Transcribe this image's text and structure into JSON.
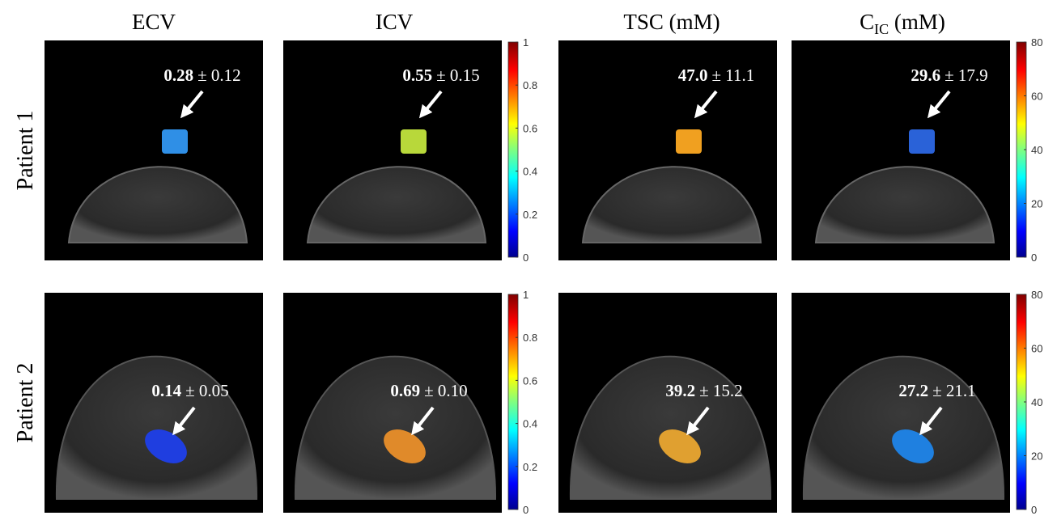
{
  "columns": [
    {
      "title": "ECV"
    },
    {
      "title": "ICV"
    },
    {
      "title": "TSC (mM)"
    },
    {
      "title": "C",
      "subscript": "IC",
      "suffix": " (mM)"
    }
  ],
  "rows": [
    {
      "label": "Patient 1",
      "panels": [
        {
          "mean": "0.28",
          "spread": "± 0.12"
        },
        {
          "mean": "0.55",
          "spread": "± 0.15"
        },
        {
          "mean": "47.0",
          "spread": "± 11.1"
        },
        {
          "mean": "29.6",
          "spread": "± 17.9"
        }
      ]
    },
    {
      "label": "Patient 2",
      "panels": [
        {
          "mean": "0.14",
          "spread": "± 0.05"
        },
        {
          "mean": "0.69",
          "spread": "± 0.10"
        },
        {
          "mean": "39.2",
          "spread": "± 15.2"
        },
        {
          "mean": "27.2",
          "spread": "± 21.1"
        }
      ]
    }
  ],
  "colorbars": [
    {
      "range": [
        0,
        1
      ],
      "ticks": [
        0,
        0.2,
        0.4,
        0.6,
        0.8,
        1
      ]
    },
    {
      "range": [
        0,
        80
      ],
      "ticks": [
        0,
        20,
        40,
        60,
        80
      ]
    }
  ]
}
